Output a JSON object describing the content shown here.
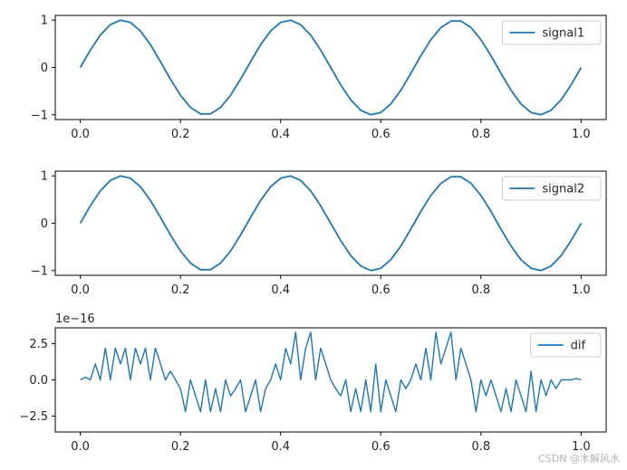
{
  "chart_data": [
    {
      "type": "line",
      "xlim": [
        -0.05,
        1.05
      ],
      "ylim": [
        -1.1,
        1.1
      ],
      "xticks": [
        0.0,
        0.2,
        0.4,
        0.6,
        0.8,
        1.0
      ],
      "xtick_labels": [
        "0.0",
        "0.2",
        "0.4",
        "0.6",
        "0.8",
        "1.0"
      ],
      "yticks": [
        -1,
        0,
        1
      ],
      "ytick_labels": [
        "−1",
        "0",
        "1"
      ],
      "legend_position": "upper-right",
      "grid": false,
      "series": [
        {
          "name": "signal1",
          "color": "#1f77b4",
          "x": [
            0,
            0.02,
            0.04,
            0.06,
            0.08,
            0.1,
            0.12,
            0.14,
            0.16,
            0.18,
            0.2,
            0.22,
            0.24,
            0.26,
            0.28,
            0.3,
            0.32,
            0.34,
            0.36,
            0.38,
            0.4,
            0.42,
            0.44,
            0.46,
            0.48,
            0.5,
            0.52,
            0.54,
            0.56,
            0.58,
            0.6,
            0.62,
            0.64,
            0.66,
            0.68,
            0.7,
            0.72,
            0.74,
            0.76,
            0.78,
            0.8,
            0.82,
            0.84,
            0.86,
            0.88,
            0.9,
            0.92,
            0.94,
            0.96,
            0.98,
            1.0
          ],
          "y": [
            0,
            0.368,
            0.685,
            0.905,
            0.998,
            0.951,
            0.771,
            0.482,
            0.125,
            -0.249,
            -0.588,
            -0.844,
            -0.982,
            -0.982,
            -0.844,
            -0.588,
            -0.249,
            0.125,
            0.482,
            0.771,
            0.951,
            0.998,
            0.905,
            0.685,
            0.368,
            0,
            -0.368,
            -0.685,
            -0.905,
            -0.998,
            -0.951,
            -0.771,
            -0.482,
            -0.125,
            0.249,
            0.588,
            0.844,
            0.982,
            0.982,
            0.844,
            0.588,
            0.249,
            -0.125,
            -0.482,
            -0.771,
            -0.951,
            -0.998,
            -0.905,
            -0.685,
            -0.368,
            0
          ]
        }
      ]
    },
    {
      "type": "line",
      "xlim": [
        -0.05,
        1.05
      ],
      "ylim": [
        -1.1,
        1.1
      ],
      "xticks": [
        0.0,
        0.2,
        0.4,
        0.6,
        0.8,
        1.0
      ],
      "xtick_labels": [
        "0.0",
        "0.2",
        "0.4",
        "0.6",
        "0.8",
        "1.0"
      ],
      "yticks": [
        -1,
        0,
        1
      ],
      "ytick_labels": [
        "−1",
        "0",
        "1"
      ],
      "legend_position": "upper-right",
      "grid": false,
      "series": [
        {
          "name": "signal2",
          "color": "#1f77b4",
          "x": [
            0,
            0.02,
            0.04,
            0.06,
            0.08,
            0.1,
            0.12,
            0.14,
            0.16,
            0.18,
            0.2,
            0.22,
            0.24,
            0.26,
            0.28,
            0.3,
            0.32,
            0.34,
            0.36,
            0.38,
            0.4,
            0.42,
            0.44,
            0.46,
            0.48,
            0.5,
            0.52,
            0.54,
            0.56,
            0.58,
            0.6,
            0.62,
            0.64,
            0.66,
            0.68,
            0.7,
            0.72,
            0.74,
            0.76,
            0.78,
            0.8,
            0.82,
            0.84,
            0.86,
            0.88,
            0.9,
            0.92,
            0.94,
            0.96,
            0.98,
            1.0
          ],
          "y": [
            0,
            0.368,
            0.685,
            0.905,
            0.998,
            0.951,
            0.771,
            0.482,
            0.125,
            -0.249,
            -0.588,
            -0.844,
            -0.982,
            -0.982,
            -0.844,
            -0.588,
            -0.249,
            0.125,
            0.482,
            0.771,
            0.951,
            0.998,
            0.905,
            0.685,
            0.368,
            0,
            -0.368,
            -0.685,
            -0.905,
            -0.998,
            -0.951,
            -0.771,
            -0.482,
            -0.125,
            0.249,
            0.588,
            0.844,
            0.982,
            0.982,
            0.844,
            0.588,
            0.249,
            -0.125,
            -0.482,
            -0.771,
            -0.951,
            -0.998,
            -0.905,
            -0.685,
            -0.368,
            0
          ]
        }
      ]
    },
    {
      "type": "line",
      "xlim": [
        -0.05,
        1.05
      ],
      "ylim": [
        -3.6,
        3.6
      ],
      "y_offset_label": "1e−16",
      "xticks": [
        0.0,
        0.2,
        0.4,
        0.6,
        0.8,
        1.0
      ],
      "xtick_labels": [
        "0.0",
        "0.2",
        "0.4",
        "0.6",
        "0.8",
        "1.0"
      ],
      "yticks": [
        -2.5,
        0,
        2.5
      ],
      "ytick_labels": [
        "−2.5",
        "0.0",
        "2.5"
      ],
      "legend_position": "upper-right",
      "grid": false,
      "series": [
        {
          "name": "dif",
          "color": "#1f77b4",
          "x": [
            0,
            0.01,
            0.02,
            0.03,
            0.04,
            0.05,
            0.06,
            0.07,
            0.08,
            0.09,
            0.1,
            0.11,
            0.12,
            0.13,
            0.14,
            0.15,
            0.16,
            0.17,
            0.18,
            0.19,
            0.2,
            0.21,
            0.22,
            0.23,
            0.24,
            0.25,
            0.26,
            0.27,
            0.28,
            0.29,
            0.3,
            0.31,
            0.32,
            0.33,
            0.34,
            0.35,
            0.36,
            0.37,
            0.38,
            0.39,
            0.4,
            0.41,
            0.42,
            0.43,
            0.44,
            0.45,
            0.46,
            0.47,
            0.48,
            0.49,
            0.5,
            0.51,
            0.52,
            0.53,
            0.54,
            0.55,
            0.56,
            0.57,
            0.58,
            0.59,
            0.6,
            0.61,
            0.62,
            0.63,
            0.64,
            0.65,
            0.66,
            0.67,
            0.68,
            0.69,
            0.7,
            0.71,
            0.72,
            0.73,
            0.74,
            0.75,
            0.76,
            0.77,
            0.78,
            0.79,
            0.8,
            0.81,
            0.82,
            0.83,
            0.84,
            0.85,
            0.86,
            0.87,
            0.88,
            0.89,
            0.9,
            0.91,
            0.92,
            0.93,
            0.94,
            0.95,
            0.96,
            0.97,
            0.98,
            0.99,
            1.0
          ],
          "y": [
            0,
            0.2,
            0,
            1.1,
            0,
            2.2,
            0,
            2.2,
            1.1,
            2.2,
            0,
            2.2,
            1.1,
            2.2,
            0,
            2.2,
            1.1,
            0,
            0.6,
            0,
            -0.6,
            -2.2,
            0,
            -1.1,
            -2.2,
            0,
            -2.2,
            -0.6,
            -2.2,
            0,
            -1.1,
            -0.6,
            0,
            -2.2,
            -1.1,
            0,
            -2.2,
            -0.6,
            0,
            1.1,
            0,
            2.2,
            1.1,
            3.3,
            0,
            2.2,
            3.3,
            0,
            2.2,
            1.1,
            0,
            -0.6,
            -1.1,
            0,
            -2.2,
            -0.6,
            -2.2,
            0,
            -2.2,
            1.1,
            -2.2,
            0,
            -1.1,
            -2.2,
            0,
            -0.6,
            0,
            1.1,
            0,
            2.2,
            0,
            3.3,
            1.1,
            2.2,
            3.3,
            0,
            2.2,
            1.1,
            0,
            -2.2,
            0,
            -1.1,
            0,
            -1.1,
            -2.2,
            -0.6,
            -2.2,
            0,
            -1.1,
            -2.2,
            0.6,
            -2.2,
            0,
            -1.1,
            0,
            -0.6,
            0,
            0,
            0,
            0.1,
            0
          ]
        }
      ]
    }
  ],
  "watermark": "CSDN @木解风水"
}
